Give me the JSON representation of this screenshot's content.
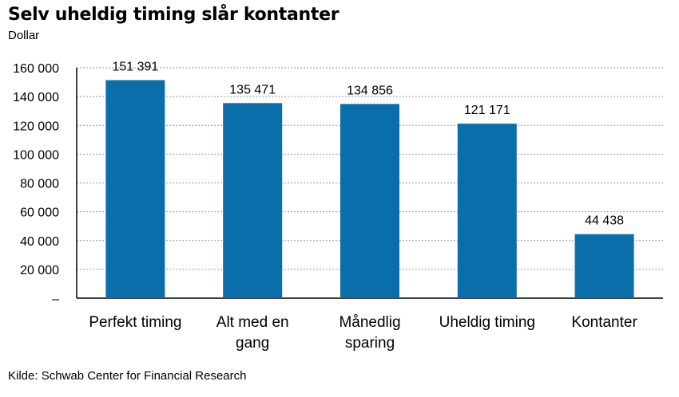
{
  "title": "Selv uheldig timing slår kontanter",
  "subtitle": "Dollar",
  "source": "Kilde: Schwab Center for Financial Research",
  "colors": {
    "bar": "#0a6eaa",
    "grid": "#9a9a9a",
    "axis": "#000000"
  },
  "chart_data": {
    "type": "bar",
    "title": "Selv uheldig timing slår kontanter",
    "ylabel": "Dollar",
    "xlabel": "",
    "ylim": [
      0,
      160000
    ],
    "grid": true,
    "yticks": [
      0,
      20000,
      40000,
      60000,
      80000,
      100000,
      120000,
      140000,
      160000
    ],
    "ytick_labels": [
      "–",
      "20 000",
      "40 000",
      "60 000",
      "80 000",
      "100 000",
      "120 000",
      "140 000",
      "160 000"
    ],
    "categories": [
      "Perfekt timing",
      "Alt med en gang",
      "Månedlig sparing",
      "Uheldig timing",
      "Kontanter"
    ],
    "category_lines": [
      [
        "Perfekt timing"
      ],
      [
        "Alt med en",
        "gang"
      ],
      [
        "Månedlig",
        "sparing"
      ],
      [
        "Uheldig timing"
      ],
      [
        "Kontanter"
      ]
    ],
    "values": [
      151391,
      135471,
      134856,
      121171,
      44438
    ],
    "value_labels": [
      "151 391",
      "135 471",
      "134 856",
      "121 171",
      "44 438"
    ]
  }
}
